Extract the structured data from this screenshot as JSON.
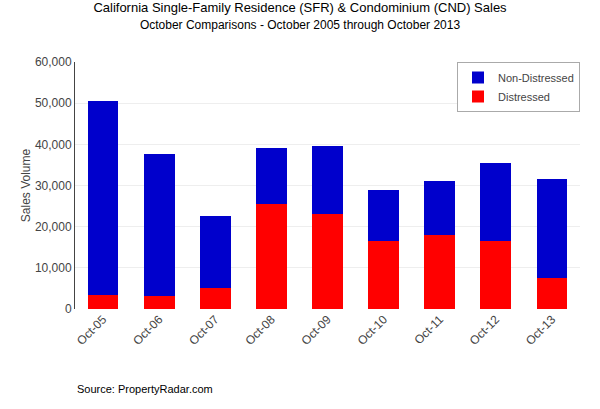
{
  "chart_data": {
    "type": "bar",
    "title": "California Single-Family Residence (SFR) & Condominium (CND) Sales",
    "subtitle": "October Comparisons - October 2005 through October 2013",
    "ylabel": "Sales Volume",
    "categories": [
      "Oct-05",
      "Oct-06",
      "Oct-07",
      "Oct-08",
      "Oct-09",
      "Oct-10",
      "Oct-11",
      "Oct-12",
      "Oct-13"
    ],
    "series": [
      {
        "name": "Distressed",
        "color": "#FF0000",
        "values": [
          3500,
          3200,
          5000,
          25500,
          23000,
          16500,
          18000,
          16500,
          7500
        ]
      },
      {
        "name": "Non-Distressed",
        "color": "#0000CC",
        "values": [
          47000,
          34500,
          17500,
          13500,
          16500,
          12500,
          13000,
          19000,
          24000
        ]
      }
    ],
    "stacked": true,
    "ylim": [
      0,
      60000
    ],
    "yticks": [
      0,
      {
        "value": 10000,
        "label": "10,000"
      },
      {
        "value": 20000,
        "label": "20,000"
      },
      {
        "value": 30000,
        "label": "30,000"
      },
      {
        "value": 40000,
        "label": "40,000"
      },
      {
        "value": 50000,
        "label": "50,000"
      },
      {
        "value": 60000,
        "label": "60,000"
      }
    ],
    "grid": true,
    "legend": "upper right",
    "annotations": [
      "Source: PropertyRadar.com"
    ]
  }
}
